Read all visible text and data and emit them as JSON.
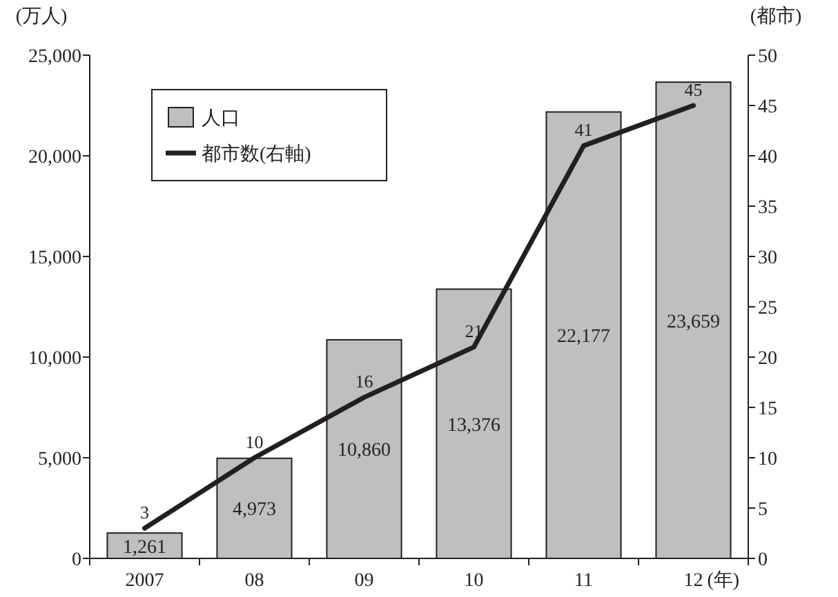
{
  "chart_data": {
    "type": "bar",
    "xlabel": "(年)",
    "ylabel": "(万人)",
    "y2label": "(都市)",
    "categories": [
      "2007",
      "08",
      "09",
      "10",
      "11",
      "12"
    ],
    "series": [
      {
        "name": "人口",
        "type": "bar",
        "color": "#bfbfbf",
        "values": [
          1261,
          4973,
          10860,
          13376,
          22177,
          23659
        ],
        "value_labels": [
          "1,261",
          "4,973",
          "10,860",
          "13,376",
          "22,177",
          "23,659"
        ]
      },
      {
        "name": "都市数(右軸)",
        "type": "line",
        "axis": "y2",
        "color": "#231f20",
        "values": [
          3,
          10,
          16,
          21,
          41,
          45
        ],
        "value_labels": [
          "3",
          "10",
          "16",
          "21",
          "41",
          "45"
        ]
      }
    ],
    "ylim": [
      0,
      25000
    ],
    "yticks": [
      0,
      {
        "value": 5000,
        "label": "5,000"
      },
      {
        "value": 10000,
        "label": "10,000"
      },
      {
        "value": 15000,
        "label": "15,000"
      },
      {
        "value": 20000,
        "label": "20,000"
      },
      {
        "value": 25000,
        "label": "25,000"
      }
    ],
    "y2lim": [
      0,
      50
    ],
    "y2ticks": [
      0,
      5,
      10,
      15,
      20,
      25,
      30,
      35,
      40,
      45,
      50
    ],
    "legend": "top left"
  }
}
